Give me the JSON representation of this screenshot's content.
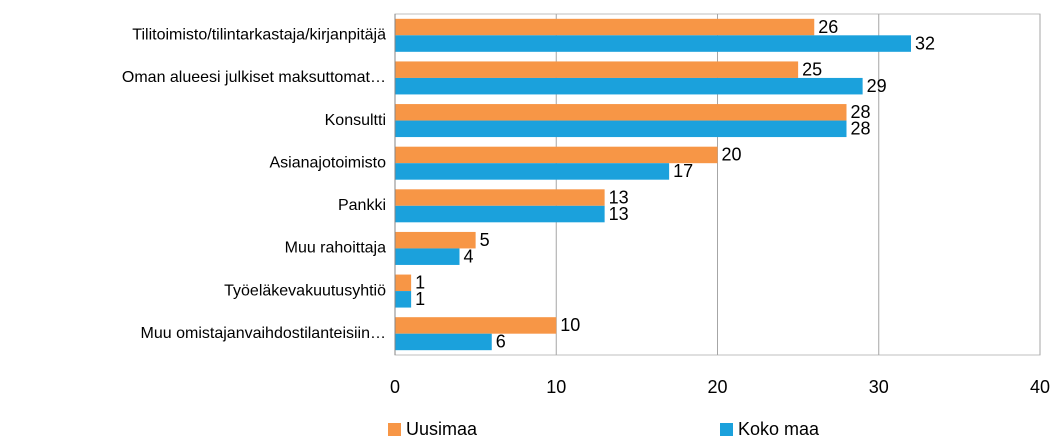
{
  "chart_data": {
    "type": "barh",
    "categories": [
      "Tilitoimisto/tilintarkastaja/kirjanpitäjä",
      "Oman alueesi julkiset maksuttomat…",
      "Konsultti",
      "Asianajotoimisto",
      "Pankki",
      "Muu rahoittaja",
      "Työeläkevakuutusyhtiö",
      "Muu omistajanvaihdostilanteisiin…"
    ],
    "series": [
      {
        "name": "Uusimaa",
        "color": "#f79646",
        "values": [
          26,
          25,
          28,
          20,
          13,
          5,
          1,
          10
        ]
      },
      {
        "name": "Koko maa",
        "color": "#1ba1dc",
        "values": [
          32,
          29,
          28,
          17,
          13,
          4,
          1,
          6
        ]
      }
    ],
    "xlim": [
      0,
      40
    ],
    "xticks": [
      0,
      10,
      20,
      30,
      40
    ],
    "grid": true,
    "legend": "bottom"
  }
}
